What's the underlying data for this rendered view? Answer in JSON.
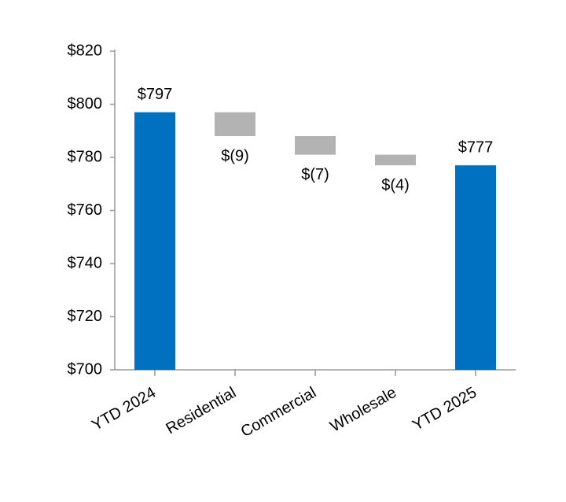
{
  "chart_data": {
    "type": "waterfall",
    "categories": [
      "YTD 2024",
      "Residential",
      "Commercial",
      "Wholesale",
      "YTD 2025"
    ],
    "values": [
      797,
      -9,
      -7,
      -4,
      777
    ],
    "value_labels": [
      "$797",
      "$(9)",
      "$(7)",
      "$(4)",
      "$777"
    ],
    "colors": [
      "#0070c0",
      "#b3b3b3",
      "#b3b3b3",
      "#b3b3b3",
      "#0070c0"
    ],
    "ylim": [
      700,
      820
    ],
    "yticks": [
      {
        "value": 700,
        "label": "$700"
      },
      {
        "value": 720,
        "label": "$720"
      },
      {
        "value": 740,
        "label": "$740"
      },
      {
        "value": 760,
        "label": "$760"
      },
      {
        "value": 780,
        "label": "$780"
      },
      {
        "value": 800,
        "label": "$800"
      },
      {
        "value": 820,
        "label": "$820"
      }
    ]
  }
}
